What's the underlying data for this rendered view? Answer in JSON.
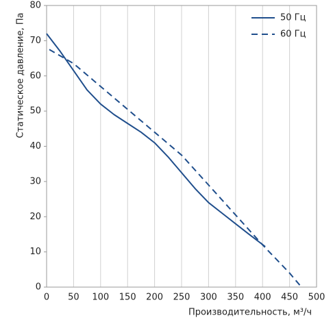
{
  "chart_data": {
    "type": "line",
    "x_label": "Производительность, м³/ч",
    "y_label": "Статическое давление, Па",
    "xlim": [
      0,
      500
    ],
    "xticks": [
      0,
      50,
      100,
      150,
      200,
      250,
      300,
      350,
      400,
      450,
      500
    ],
    "ylim": [
      0,
      80
    ],
    "yticks": [
      0,
      10,
      20,
      30,
      40,
      50,
      60,
      70,
      80
    ],
    "grid": "x",
    "legend": "upper right",
    "series": [
      {
        "name": "50 Гц",
        "color": "#1f4e8c",
        "line_style": "solid",
        "x": [
          0,
          25,
          50,
          75,
          100,
          125,
          150,
          175,
          200,
          225,
          250,
          275,
          300,
          325,
          350,
          375,
          405
        ],
        "values": [
          72,
          67,
          61.5,
          56,
          52,
          49,
          46.5,
          44,
          41,
          37,
          32.5,
          28,
          24,
          21,
          18,
          15,
          11.5
        ]
      },
      {
        "name": "60 Гц",
        "color": "#1f4e8c",
        "line_style": "dashed",
        "x": [
          5,
          50,
          100,
          150,
          200,
          250,
          300,
          350,
          400,
          450,
          472
        ],
        "values": [
          67.5,
          63.5,
          57,
          50.5,
          44,
          37.5,
          29,
          20.5,
          12,
          4,
          0
        ]
      }
    ]
  }
}
